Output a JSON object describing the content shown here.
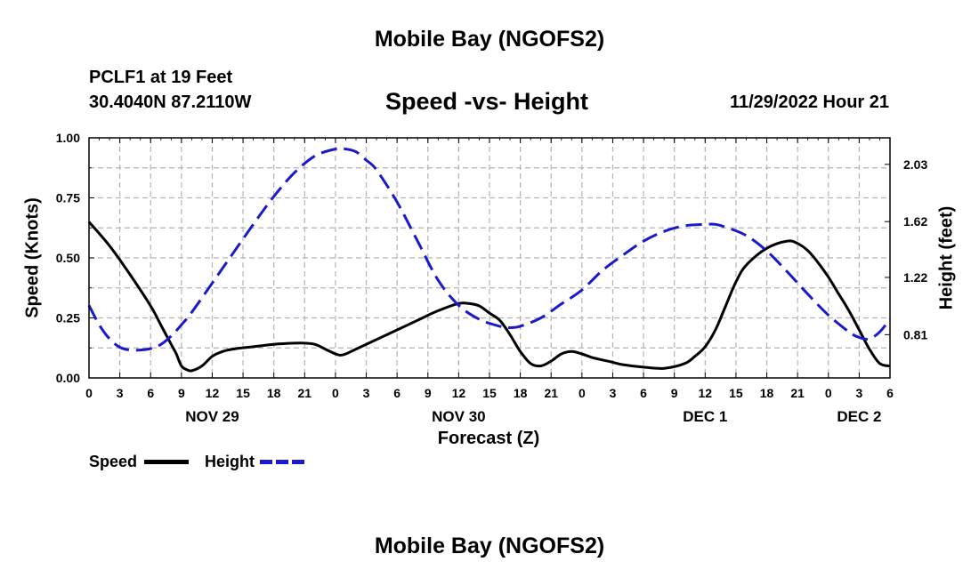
{
  "page": {
    "title": "Mobile Bay (NGOFS2)",
    "footer_title": "Mobile Bay (NGOFS2)"
  },
  "header": {
    "station": "PCLF1 at 19 Feet",
    "coords": "30.4040N  87.2110W",
    "subtitle": "Speed -vs- Height",
    "datetime": "11/29/2022 Hour 21"
  },
  "legend": {
    "speed_label": "Speed",
    "height_label": "Height"
  },
  "colors": {
    "speed": "#000000",
    "height": "#1a1acc",
    "grid": "#b4b4b4"
  },
  "chart_data": {
    "type": "line",
    "title": "Speed -vs- Height",
    "xlabel": "Forecast (Z)",
    "ylabel": "Speed (Knots)",
    "y2label": "Height (feet)",
    "xlim": [
      0,
      78
    ],
    "ylim": [
      0,
      1.0
    ],
    "y2lim": [
      0.5,
      2.22
    ],
    "x_ticks": [
      0,
      3,
      6,
      9,
      12,
      15,
      18,
      21,
      24,
      27,
      30,
      33,
      36,
      39,
      42,
      45,
      48,
      51,
      54,
      57,
      60,
      63,
      66,
      69,
      72,
      75,
      78
    ],
    "x_tick_labels": [
      "0",
      "3",
      "6",
      "9",
      "12",
      "15",
      "18",
      "21",
      "0",
      "3",
      "6",
      "9",
      "12",
      "15",
      "18",
      "21",
      "0",
      "3",
      "6",
      "9",
      "12",
      "15",
      "18",
      "21",
      "0",
      "3",
      "6"
    ],
    "date_labels": [
      {
        "x": 12,
        "text": "NOV 29"
      },
      {
        "x": 36,
        "text": "NOV 30"
      },
      {
        "x": 60,
        "text": "DEC 1"
      },
      {
        "x": 75,
        "text": "DEC 2"
      }
    ],
    "y_ticks": [
      0.0,
      0.25,
      0.5,
      0.75,
      1.0
    ],
    "y_tick_labels": [
      "0.00",
      "0.25",
      "0.50",
      "0.75",
      "1.00"
    ],
    "y2_ticks": [
      0.81,
      1.22,
      1.62,
      2.03
    ],
    "y2_tick_labels": [
      "0.81",
      "1.22",
      "1.62",
      "2.03"
    ],
    "grid": true,
    "series": [
      {
        "name": "Speed",
        "axis": "left",
        "style": "solid",
        "x": [
          0,
          2,
          4,
          6,
          7,
          8,
          8.5,
          9,
          9.5,
          10,
          11,
          12,
          13,
          14,
          16,
          18,
          20,
          21,
          22,
          23,
          24,
          24.5,
          25,
          26,
          28,
          30,
          32,
          34,
          36,
          37,
          38,
          39,
          40,
          41,
          42,
          43,
          44,
          45,
          46,
          47,
          48,
          49,
          50,
          51,
          52,
          54,
          56,
          58,
          59,
          60,
          61,
          62,
          63,
          64,
          66,
          68,
          69,
          70,
          71,
          72,
          73,
          74,
          75,
          76,
          77,
          78
        ],
        "values": [
          0.65,
          0.55,
          0.43,
          0.3,
          0.22,
          0.14,
          0.1,
          0.05,
          0.035,
          0.03,
          0.05,
          0.09,
          0.11,
          0.12,
          0.13,
          0.14,
          0.145,
          0.145,
          0.14,
          0.12,
          0.1,
          0.095,
          0.1,
          0.12,
          0.16,
          0.2,
          0.24,
          0.28,
          0.31,
          0.31,
          0.3,
          0.27,
          0.24,
          0.18,
          0.11,
          0.06,
          0.05,
          0.07,
          0.1,
          0.11,
          0.1,
          0.085,
          0.075,
          0.065,
          0.055,
          0.045,
          0.04,
          0.06,
          0.09,
          0.13,
          0.2,
          0.3,
          0.4,
          0.47,
          0.54,
          0.57,
          0.56,
          0.53,
          0.48,
          0.42,
          0.35,
          0.28,
          0.2,
          0.12,
          0.06,
          0.05
        ]
      },
      {
        "name": "Height",
        "axis": "right",
        "style": "dashed",
        "x": [
          0,
          1,
          2,
          3,
          4,
          5,
          6,
          7,
          8,
          9,
          10,
          12,
          14,
          16,
          18,
          20,
          22,
          24,
          25,
          26,
          27,
          28,
          30,
          32,
          34,
          36,
          38,
          40,
          41,
          42,
          44,
          46,
          48,
          50,
          52,
          54,
          56,
          58,
          60,
          61,
          62,
          64,
          66,
          68,
          70,
          72,
          74,
          75,
          76,
          77,
          78
        ],
        "values": [
          1.02,
          0.88,
          0.78,
          0.72,
          0.7,
          0.7,
          0.71,
          0.74,
          0.8,
          0.88,
          0.97,
          1.18,
          1.39,
          1.6,
          1.8,
          1.97,
          2.09,
          2.14,
          2.14,
          2.12,
          2.06,
          1.99,
          1.76,
          1.48,
          1.2,
          1.02,
          0.92,
          0.87,
          0.86,
          0.87,
          0.93,
          1.03,
          1.13,
          1.27,
          1.38,
          1.48,
          1.55,
          1.59,
          1.6,
          1.6,
          1.58,
          1.52,
          1.41,
          1.26,
          1.1,
          0.95,
          0.83,
          0.79,
          0.78,
          0.83,
          0.92
        ]
      }
    ]
  }
}
